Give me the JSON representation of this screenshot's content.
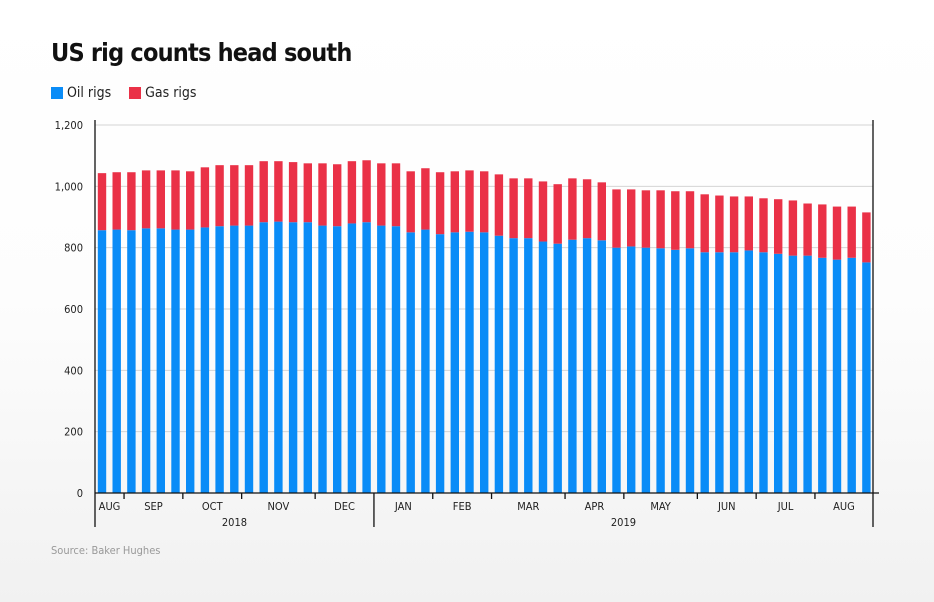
{
  "chart_data": {
    "type": "bar",
    "stacked": true,
    "title": "US rig counts head south",
    "xlabel": "",
    "ylabel": "",
    "ylim": [
      0,
      1200
    ],
    "yticks": [
      "0",
      "200",
      "400",
      "600",
      "800",
      "1,000",
      "1,200"
    ],
    "grid": true,
    "legend_position": "top-left",
    "month_groups": [
      {
        "label": "AUG",
        "weeks": 2,
        "year": "2018"
      },
      {
        "label": "SEP",
        "weeks": 4,
        "year": "2018"
      },
      {
        "label": "OCT",
        "weeks": 4,
        "year": "2018"
      },
      {
        "label": "NOV",
        "weeks": 5,
        "year": "2018"
      },
      {
        "label": "DEC",
        "weeks": 4,
        "year": "2018"
      },
      {
        "label": "JAN",
        "weeks": 4,
        "year": "2019"
      },
      {
        "label": "FEB",
        "weeks": 4,
        "year": "2019"
      },
      {
        "label": "MAR",
        "weeks": 5,
        "year": "2019"
      },
      {
        "label": "APR",
        "weeks": 4,
        "year": "2019"
      },
      {
        "label": "MAY",
        "weeks": 5,
        "year": "2019"
      },
      {
        "label": "JUN",
        "weeks": 4,
        "year": "2019"
      },
      {
        "label": "JUL",
        "weeks": 4,
        "year": "2019"
      },
      {
        "label": "AUG",
        "weeks": 4,
        "year": "2019"
      }
    ],
    "years": [
      {
        "label": "2018"
      },
      {
        "label": "2019"
      }
    ],
    "series": [
      {
        "name": "Oil rigs",
        "color": "#0a8cf7",
        "values": [
          857,
          859,
          857,
          863,
          863,
          859,
          859,
          866,
          870,
          872,
          872,
          883,
          885,
          883,
          883,
          872,
          870,
          879,
          883,
          872,
          870,
          850,
          859,
          844,
          850,
          852,
          850,
          839,
          831,
          831,
          820,
          813,
          826,
          831,
          824,
          800,
          804,
          800,
          798,
          793,
          798,
          785,
          785,
          785,
          791,
          785,
          780,
          774,
          774,
          767,
          761,
          767,
          752
        ]
      },
      {
        "name": "Gas rigs",
        "color": "#ea3147",
        "values": [
          186,
          187,
          189,
          189,
          189,
          193,
          190,
          196,
          199,
          197,
          197,
          199,
          197,
          196,
          192,
          203,
          202,
          203,
          202,
          203,
          205,
          199,
          200,
          202,
          199,
          200,
          199,
          200,
          195,
          195,
          196,
          194,
          200,
          192,
          189,
          190,
          186,
          187,
          189,
          191,
          186,
          189,
          185,
          182,
          176,
          176,
          178,
          180,
          170,
          174,
          173,
          167,
          163
        ]
      }
    ]
  },
  "source": "Source: Baker Hughes"
}
